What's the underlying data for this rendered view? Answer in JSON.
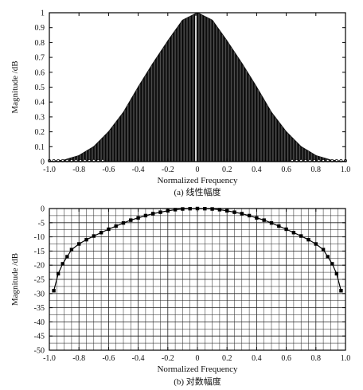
{
  "chart_data": [
    {
      "type": "area",
      "caption": "(a) 线性幅度",
      "xlabel": "Normalized Frequency",
      "ylabel": "Magnitude /dB",
      "xlim": [
        -1.0,
        1.0
      ],
      "ylim": [
        0,
        1.0
      ],
      "xticks": [
        "-1.0",
        "-0.8",
        "-0.6",
        "-0.4",
        "-0.2",
        "0",
        "0.2",
        "0.4",
        "0.6",
        "0.8",
        "1.0"
      ],
      "yticks": [
        "0",
        "0.1",
        "0.2",
        "0.3",
        "0.4",
        "0.5",
        "0.6",
        "0.7",
        "0.8",
        "0.9",
        "1"
      ],
      "grid": false,
      "series": [
        {
          "x": [
            -1.0,
            -0.9,
            -0.8,
            -0.7,
            -0.6,
            -0.5,
            -0.4,
            -0.3,
            -0.2,
            -0.1,
            0.0,
            0.1,
            0.2,
            0.3,
            0.4,
            0.5,
            0.6,
            0.7,
            0.8,
            0.9,
            1.0
          ],
          "y": [
            0.0,
            0.01,
            0.04,
            0.1,
            0.2,
            0.33,
            0.5,
            0.66,
            0.81,
            0.95,
            1.0,
            0.95,
            0.81,
            0.66,
            0.5,
            0.33,
            0.2,
            0.1,
            0.04,
            0.01,
            0.0
          ]
        }
      ]
    },
    {
      "type": "line",
      "caption": "(b) 对数幅度",
      "xlabel": "Normalized Frequency",
      "ylabel": "Magnitude /dB",
      "xlim": [
        -1.0,
        1.0
      ],
      "ylim": [
        -50,
        0
      ],
      "xticks": [
        "-1.0",
        "-0.8",
        "-0.6",
        "-0.4",
        "-0.2",
        "0",
        "0.2",
        "0.4",
        "0.6",
        "0.8",
        "1.0"
      ],
      "yticks": [
        "0",
        "-5",
        "-10",
        "-15",
        "-20",
        "-25",
        "-30",
        "-35",
        "-40",
        "-45",
        "-50"
      ],
      "grid": true,
      "series": [
        {
          "x": [
            -0.97,
            -0.94,
            -0.91,
            -0.88,
            -0.85,
            -0.8,
            -0.75,
            -0.7,
            -0.65,
            -0.6,
            -0.55,
            -0.5,
            -0.45,
            -0.4,
            -0.35,
            -0.3,
            -0.25,
            -0.2,
            -0.15,
            -0.1,
            -0.05,
            0.0,
            0.05,
            0.1,
            0.15,
            0.2,
            0.25,
            0.3,
            0.35,
            0.4,
            0.45,
            0.5,
            0.55,
            0.6,
            0.65,
            0.7,
            0.75,
            0.8,
            0.85,
            0.88,
            0.91,
            0.94,
            0.97
          ],
          "y": [
            -29,
            -23,
            -19.5,
            -17,
            -14.5,
            -12.5,
            -11,
            -9.7,
            -8.5,
            -7.3,
            -6.2,
            -5.1,
            -4.1,
            -3.3,
            -2.5,
            -1.8,
            -1.3,
            -0.8,
            -0.4,
            -0.15,
            -0.05,
            0,
            -0.05,
            -0.15,
            -0.4,
            -0.8,
            -1.3,
            -1.8,
            -2.5,
            -3.3,
            -4.1,
            -5.1,
            -6.2,
            -7.3,
            -8.5,
            -9.7,
            -11,
            -12.5,
            -14.5,
            -17,
            -19.5,
            -23,
            -29
          ]
        }
      ]
    }
  ]
}
